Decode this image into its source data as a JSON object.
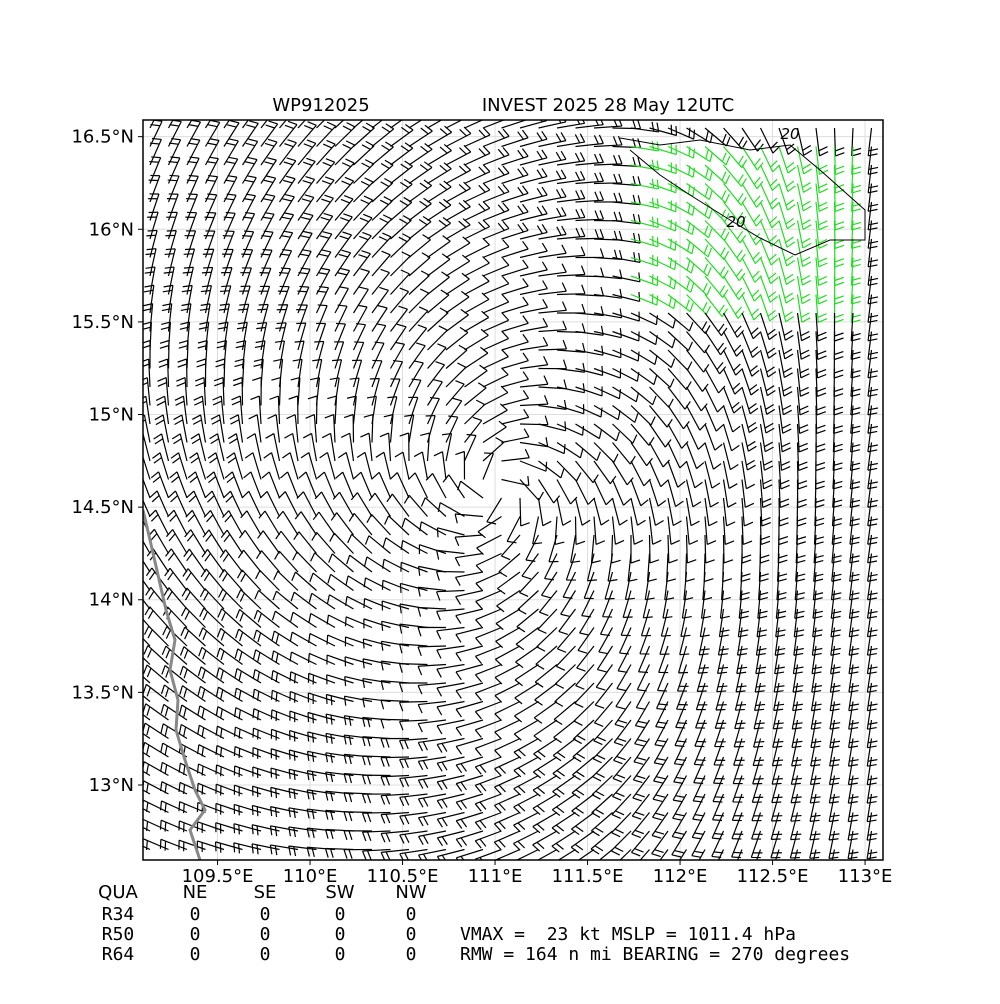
{
  "map": {
    "title_left": "WP912025",
    "title_right": "INVEST 2025 28 May 12UTC",
    "xlim": [
      109.097,
      113.097
    ],
    "ylim": [
      12.595,
      16.59
    ],
    "xticks": [
      {
        "value": 109.5,
        "label": "109.5°E"
      },
      {
        "value": 110,
        "label": "110°E"
      },
      {
        "value": 110.5,
        "label": "110.5°E"
      },
      {
        "value": 111,
        "label": "111°E"
      },
      {
        "value": 111.5,
        "label": "111.5°E"
      },
      {
        "value": 112,
        "label": "112°E"
      },
      {
        "value": 112.5,
        "label": "112.5°E"
      },
      {
        "value": 113,
        "label": "113°E"
      }
    ],
    "yticks": [
      {
        "value": 13,
        "label": "13°N"
      },
      {
        "value": 13.5,
        "label": "13.5°N"
      },
      {
        "value": 14,
        "label": "14°N"
      },
      {
        "value": 14.5,
        "label": "14.5°N"
      },
      {
        "value": 15,
        "label": "15°N"
      },
      {
        "value": 15.5,
        "label": "15.5°N"
      },
      {
        "value": 16,
        "label": "16°N"
      },
      {
        "value": 16.5,
        "label": "16.5°N"
      }
    ],
    "contour_labels": [
      "20",
      "20"
    ]
  },
  "table": {
    "header": [
      "QUA",
      "NE",
      "SE",
      "SW",
      "NW"
    ],
    "rows": [
      [
        "R34",
        "0",
        "0",
        "0",
        "0"
      ],
      [
        "R50",
        "0",
        "0",
        "0",
        "0"
      ],
      [
        "R64",
        "0",
        "0",
        "0",
        "0"
      ]
    ]
  },
  "info": [
    "VMAX =  23 kt MSLP = 1011.4 hPa",
    "RMW = 164 n mi BEARING = 270 degrees"
  ]
}
